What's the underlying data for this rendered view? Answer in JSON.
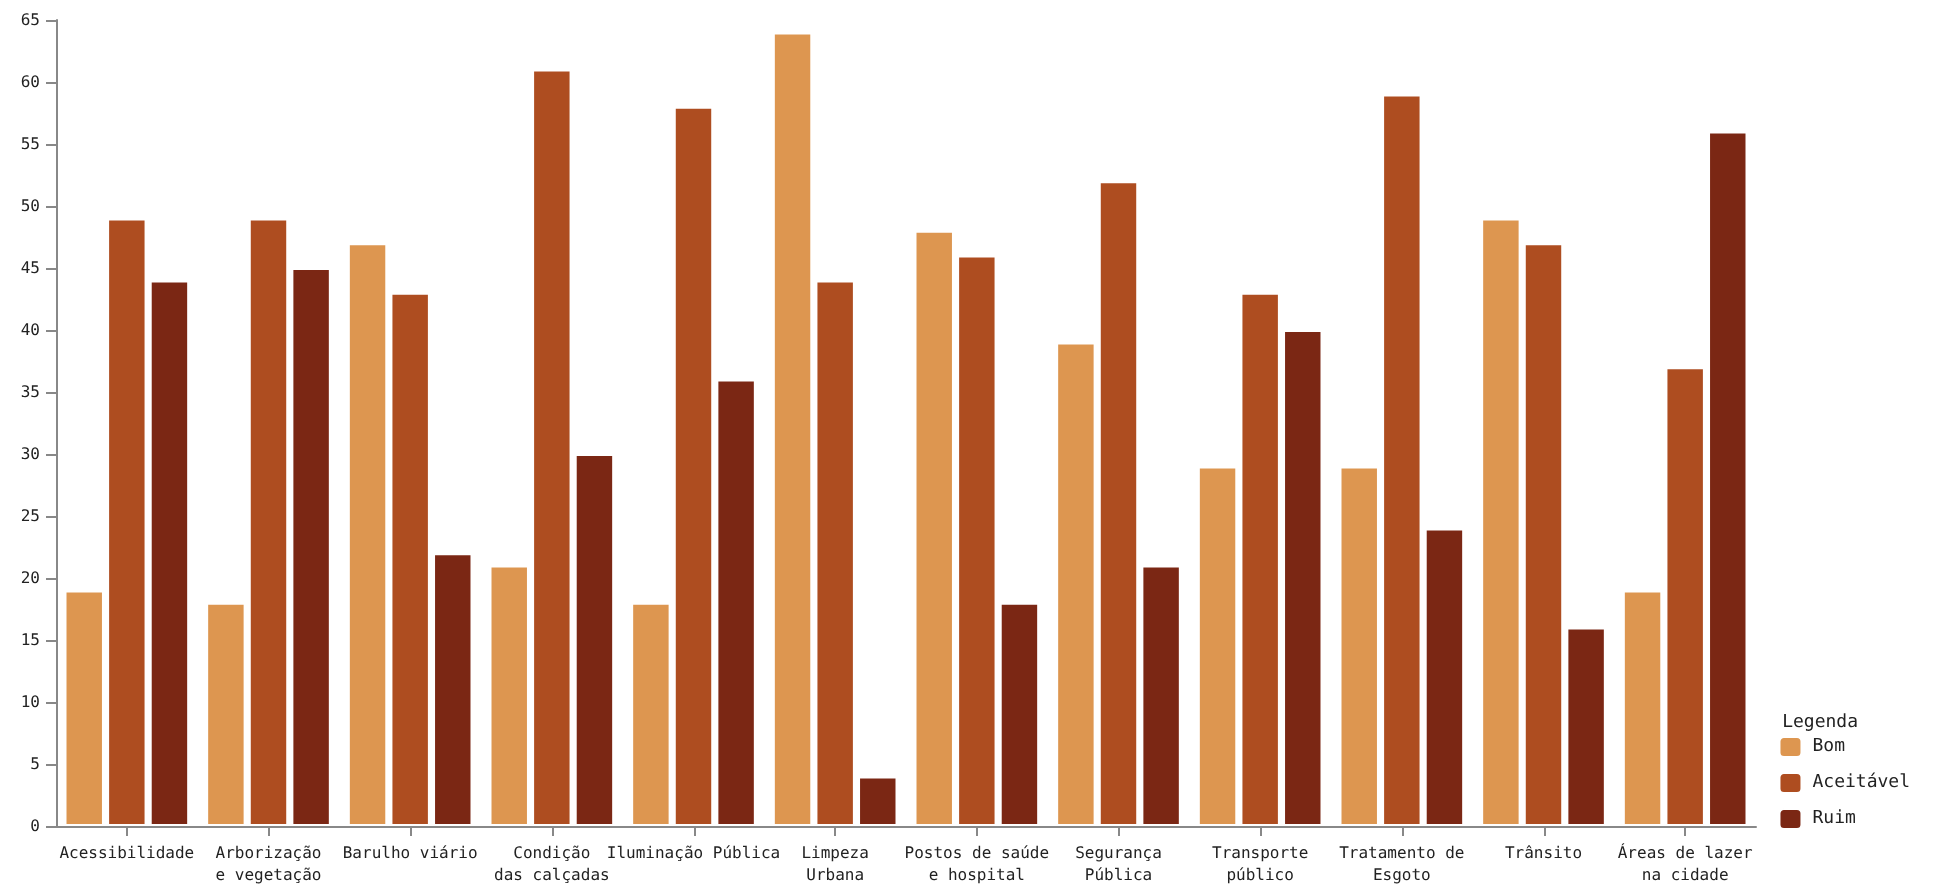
{
  "chart_data": {
    "type": "bar",
    "categories": [
      "Acessibilidade",
      "Arborização\ne vegetação",
      "Barulho viário",
      "Condição\ndas calçadas",
      "Iluminação Pública",
      "Limpeza\nUrbana",
      "Postos de saúde\ne hospital",
      "Segurança\nPública",
      "Transporte\npúblico",
      "Tratamento de\nEsgoto",
      "Trânsito",
      "Áreas de lazer\nna cidade"
    ],
    "series": [
      {
        "name": "Bom",
        "color": "#dd9650",
        "values": [
          19,
          18,
          47,
          21,
          18,
          64,
          48,
          39,
          29,
          29,
          49,
          19
        ]
      },
      {
        "name": "Aceitável",
        "color": "#ae4d20",
        "values": [
          49,
          49,
          43,
          61,
          58,
          44,
          46,
          52,
          43,
          59,
          47,
          37
        ]
      },
      {
        "name": "Ruim",
        "color": "#7b2714",
        "values": [
          44,
          45,
          22,
          30,
          36,
          4,
          18,
          21,
          40,
          24,
          16,
          56
        ]
      }
    ],
    "ylim": [
      0,
      65
    ],
    "yticks": [
      0,
      5,
      10,
      15,
      20,
      25,
      30,
      35,
      40,
      45,
      50,
      55,
      60,
      65
    ],
    "legend_title": "Legenda",
    "legend": "bottom right",
    "grid": false
  }
}
